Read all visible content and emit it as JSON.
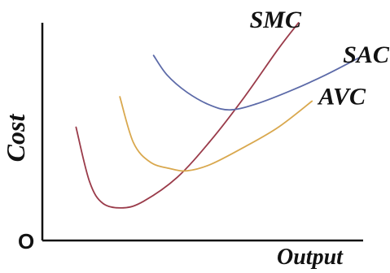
{
  "chart_data": {
    "type": "line",
    "title": "",
    "xlabel": "Output",
    "ylabel": "Cost",
    "origin_label": "O",
    "xlim": [
      0,
      100
    ],
    "ylim": [
      0,
      100
    ],
    "grid": false,
    "legend": "none",
    "series": [
      {
        "name": "SMC",
        "color": "#9a3b4a",
        "x": [
          10,
          14,
          18,
          24,
          30,
          40,
          50,
          60,
          70,
          76
        ],
        "y": [
          52,
          27,
          17,
          15,
          18,
          29,
          46,
          66,
          88,
          100
        ]
      },
      {
        "name": "SAC",
        "color": "#5c6aa8",
        "x": [
          33,
          37,
          43,
          50,
          56,
          64,
          74,
          84,
          94
        ],
        "y": [
          85,
          76,
          68,
          62,
          60,
          63,
          69,
          76,
          84
        ]
      },
      {
        "name": "AVC",
        "color": "#d9a84e",
        "x": [
          23,
          27,
          32,
          38,
          43,
          50,
          60,
          70,
          80
        ],
        "y": [
          66,
          45,
          36,
          33,
          32,
          35,
          43,
          52,
          64
        ]
      }
    ],
    "annotations": [
      {
        "text": "SMC",
        "series": "SMC"
      },
      {
        "text": "SAC",
        "series": "SAC"
      },
      {
        "text": "AVC",
        "series": "AVC"
      }
    ]
  }
}
